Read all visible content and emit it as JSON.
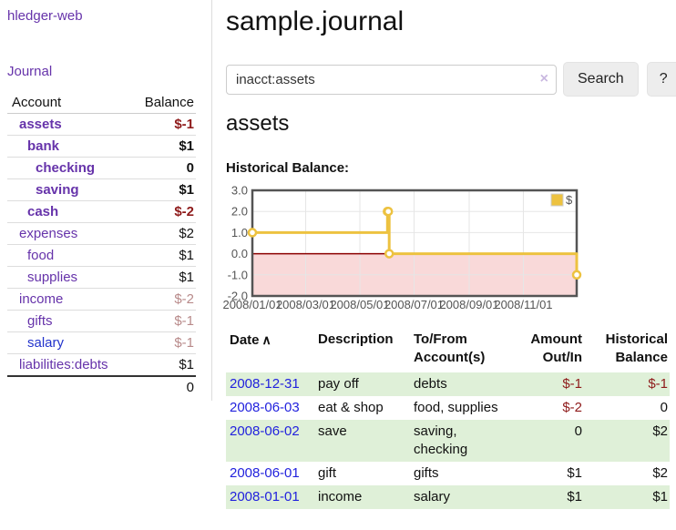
{
  "sidebar": {
    "brand": "hledger-web",
    "nav": {
      "journal": "Journal"
    },
    "accounts_table": {
      "headers": {
        "account": "Account",
        "balance": "Balance"
      },
      "rows": [
        {
          "label": "assets",
          "depth": 1,
          "bold": true,
          "name_color": "purple",
          "balance": "$-1",
          "bal_class": "neg"
        },
        {
          "label": "bank",
          "depth": 2,
          "bold": true,
          "name_color": "purple",
          "balance": "$1",
          "bal_class": ""
        },
        {
          "label": "checking",
          "depth": 3,
          "bold": true,
          "name_color": "purple",
          "balance": "0",
          "bal_class": ""
        },
        {
          "label": "saving",
          "depth": 3,
          "bold": true,
          "name_color": "purple",
          "balance": "$1",
          "bal_class": ""
        },
        {
          "label": "cash",
          "depth": 2,
          "bold": true,
          "name_color": "purple",
          "balance": "$-2",
          "bal_class": "neg"
        },
        {
          "label": "expenses",
          "depth": 1,
          "bold": false,
          "name_color": "purple",
          "balance": "$2",
          "bal_class": ""
        },
        {
          "label": "food",
          "depth": 2,
          "bold": false,
          "name_color": "purple",
          "balance": "$1",
          "bal_class": ""
        },
        {
          "label": "supplies",
          "depth": 2,
          "bold": false,
          "name_color": "purple",
          "balance": "$1",
          "bal_class": ""
        },
        {
          "label": "income",
          "depth": 1,
          "bold": false,
          "name_color": "purple",
          "balance": "$-2",
          "bal_class": "negfade"
        },
        {
          "label": "gifts",
          "depth": 2,
          "bold": false,
          "name_color": "purple",
          "balance": "$-1",
          "bal_class": "negfade"
        },
        {
          "label": "salary",
          "depth": 2,
          "bold": false,
          "name_color": "blue",
          "balance": "$-1",
          "bal_class": "negfade"
        },
        {
          "label": "liabilities:debts",
          "depth": 1,
          "bold": false,
          "name_color": "purple",
          "balance": "$1",
          "bal_class": "",
          "last": true
        }
      ],
      "total": "0"
    }
  },
  "header": {
    "title": "sample.journal"
  },
  "search": {
    "value": "inacct:assets",
    "clear_icon": "×",
    "button": "Search",
    "help_button": "?"
  },
  "main": {
    "account_heading": "assets",
    "chart_title": "Historical Balance:"
  },
  "chart_data": {
    "type": "line",
    "step": true,
    "title": "Historical Balance:",
    "series": [
      {
        "name": "$",
        "color": "#edc240",
        "points": [
          [
            "2008-01-01",
            1
          ],
          [
            "2008-06-01",
            2
          ],
          [
            "2008-06-02",
            2
          ],
          [
            "2008-06-03",
            0
          ],
          [
            "2008-12-31",
            -1
          ]
        ]
      }
    ],
    "x_start": "2008-01-01",
    "x_end": "2008-12-31",
    "x_ticks": [
      [
        "2008-01-01",
        "2008/01/01"
      ],
      [
        "2008-03-01",
        "2008/03/01"
      ],
      [
        "2008-05-01",
        "2008/05/01"
      ],
      [
        "2008-07-01",
        "2008/07/01"
      ],
      [
        "2008-09-01",
        "2008/09/01"
      ],
      [
        "2008-11-01",
        "2008/11/01"
      ]
    ],
    "y_ticks": [
      "3.0",
      "2.0",
      "1.0",
      "0.0",
      "-1.0",
      "-2.0"
    ],
    "ylim": [
      -2,
      3
    ],
    "grid": true,
    "legend_position": "top-right",
    "negative_region_color": "#f9d9d9",
    "zero_line_color": "#8b0000",
    "border_color": "#545454",
    "grid_color": "#e6e6e6",
    "axis_label_color": "#545454"
  },
  "register": {
    "headers": {
      "date": "Date",
      "sort_icon": "∧",
      "description": "Description",
      "accounts": "To/From Account(s)",
      "amount": "Amount Out/In",
      "balance": "Historical Balance"
    },
    "rows": [
      {
        "date": "2008-12-31",
        "description": "pay off",
        "accounts": "debts",
        "amount": "$-1",
        "amount_neg": true,
        "balance": "$-1",
        "balance_neg": true,
        "shaded": true
      },
      {
        "date": "2008-06-03",
        "description": "eat & shop",
        "accounts": "food, supplies",
        "amount": "$-2",
        "amount_neg": true,
        "balance": "0",
        "balance_neg": false,
        "shaded": false
      },
      {
        "date": "2008-06-02",
        "description": "save",
        "accounts": "saving, checking",
        "amount": "0",
        "amount_neg": false,
        "balance": "$2",
        "balance_neg": false,
        "shaded": true
      },
      {
        "date": "2008-06-01",
        "description": "gift",
        "accounts": "gifts",
        "amount": "$1",
        "amount_neg": false,
        "balance": "$2",
        "balance_neg": false,
        "shaded": false
      },
      {
        "date": "2008-01-01",
        "description": "income",
        "accounts": "salary",
        "amount": "$1",
        "amount_neg": false,
        "balance": "$1",
        "balance_neg": false,
        "shaded": true
      }
    ]
  },
  "colors": {
    "link_purple": "#6633aa",
    "link_blue": "#2233cc",
    "negative_strong": "#8e1a1a",
    "negative_faded": "#b88a8a",
    "row_shade_green": "#dff0d8",
    "chart_line_gold": "#edc240",
    "chart_negative_pink": "#f9d9d9",
    "chart_zero_line": "#8b0000",
    "chart_border": "#545454",
    "button_bg": "#ededed",
    "input_border": "#cccccc",
    "clear_icon_color": "#c9b8e0"
  }
}
